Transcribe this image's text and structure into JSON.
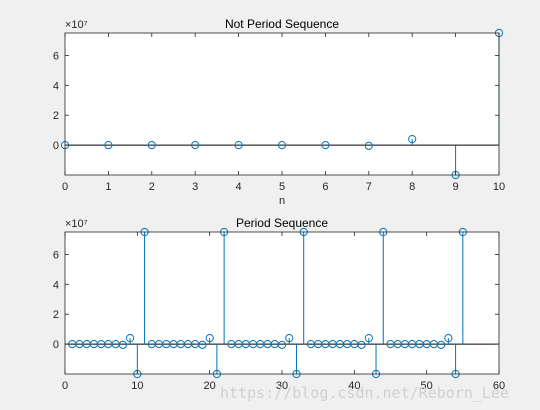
{
  "colors": {
    "figure_bg": "#f0f0f0",
    "axes_bg": "#ffffff",
    "stem": "#0072bd",
    "axis_line": "#262626",
    "baseline": "#000000",
    "watermark": "#d0d0d0"
  },
  "watermark": "https://blog.csdn.net/Reborn_Lee",
  "chart_data": [
    {
      "type": "stem",
      "title": "Not Period Sequence",
      "xlabel": "n",
      "ylabel": "",
      "exponent_label": "×10⁷",
      "xlim": [
        0,
        10
      ],
      "ylim": [
        -20000000,
        75000000
      ],
      "xticks": [
        0,
        1,
        2,
        3,
        4,
        5,
        6,
        7,
        8,
        9,
        10
      ],
      "yticks": [
        0,
        20000000,
        40000000,
        60000000
      ],
      "ytick_labels": [
        "0",
        "2",
        "4",
        "6"
      ],
      "grid": false,
      "x": [
        0,
        1,
        2,
        3,
        4,
        5,
        6,
        7,
        8,
        9,
        10
      ],
      "y": [
        0,
        0,
        0,
        0,
        0,
        0,
        0,
        -500000,
        4000000,
        -20000000,
        75000000
      ]
    },
    {
      "type": "stem",
      "title": "Period Sequence",
      "xlabel": "",
      "ylabel": "",
      "exponent_label": "×10⁷",
      "xlim": [
        0,
        60
      ],
      "ylim": [
        -20000000,
        75000000
      ],
      "xticks": [
        0,
        10,
        20,
        30,
        40,
        50,
        60
      ],
      "yticks": [
        0,
        20000000,
        40000000,
        60000000
      ],
      "ytick_labels": [
        "0",
        "2",
        "4",
        "6"
      ],
      "grid": false,
      "x": [
        1,
        2,
        3,
        4,
        5,
        6,
        7,
        8,
        9,
        10,
        11,
        12,
        13,
        14,
        15,
        16,
        17,
        18,
        19,
        20,
        21,
        22,
        23,
        24,
        25,
        26,
        27,
        28,
        29,
        30,
        31,
        32,
        33,
        34,
        35,
        36,
        37,
        38,
        39,
        40,
        41,
        42,
        43,
        44,
        45,
        46,
        47,
        48,
        49,
        50,
        51,
        52,
        53,
        54,
        55
      ],
      "y": [
        0,
        0,
        0,
        0,
        0,
        0,
        0,
        -500000,
        4000000,
        -20000000,
        75000000,
        0,
        0,
        0,
        0,
        0,
        0,
        0,
        -500000,
        4000000,
        -20000000,
        75000000,
        0,
        0,
        0,
        0,
        0,
        0,
        0,
        -500000,
        4000000,
        -20000000,
        75000000,
        0,
        0,
        0,
        0,
        0,
        0,
        0,
        -500000,
        4000000,
        -20000000,
        75000000,
        0,
        0,
        0,
        0,
        0,
        0,
        0,
        -500000,
        4000000,
        -20000000,
        75000000
      ]
    }
  ]
}
